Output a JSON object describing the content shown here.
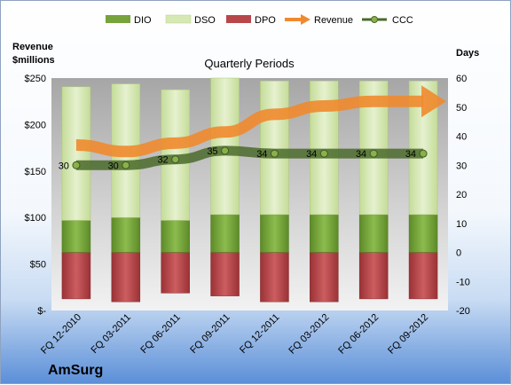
{
  "chart_data": {
    "type": "bar",
    "title": "Quarterly Periods",
    "company": "AmSurg",
    "left_axis": {
      "label_line1": "Revenue",
      "label_line2": "$millions",
      "min": 0,
      "max": 250,
      "step": 50,
      "tick_labels": [
        "$-",
        "$50",
        "$100",
        "$150",
        "$200",
        "$250"
      ]
    },
    "right_axis": {
      "label": "Days",
      "min": -20,
      "max": 60,
      "step": 10
    },
    "categories": [
      "FQ 12-2010",
      "FQ 03-2011",
      "FQ 06-2011",
      "FQ 09-2011",
      "FQ 12-2011",
      "FQ 03-2012",
      "FQ 06-2012",
      "FQ 09-2012"
    ],
    "series": [
      {
        "name": "DIO",
        "axis": "right",
        "type": "stacked-bar",
        "color": "#77a33c",
        "values": [
          11,
          12,
          11,
          13,
          13,
          13,
          13,
          13
        ]
      },
      {
        "name": "DSO",
        "axis": "right",
        "type": "stacked-bar",
        "color": "#d6e8b4",
        "values": [
          46,
          46,
          45,
          47,
          46,
          46,
          46,
          46
        ]
      },
      {
        "name": "DPO",
        "axis": "right",
        "type": "negative-bar",
        "color": "#b8474a",
        "values": [
          -16,
          -17,
          -14,
          -15,
          -17,
          -17,
          -16,
          -16
        ]
      },
      {
        "name": "Revenue",
        "axis": "left",
        "type": "line-arrow",
        "color": "#f08a2e",
        "values": [
          178,
          171,
          180,
          192,
          211,
          220,
          225,
          225
        ]
      },
      {
        "name": "CCC",
        "axis": "right",
        "type": "line-markers",
        "color": "#4a6a2a",
        "values": [
          30,
          30,
          32,
          35,
          34,
          34,
          34,
          34
        ],
        "labels": [
          "30",
          "30",
          "32",
          "35",
          "34",
          "34",
          "34",
          "34"
        ]
      }
    ],
    "legend": {
      "position": "top",
      "items": [
        "DIO",
        "DSO",
        "DPO",
        "Revenue",
        "CCC"
      ]
    },
    "grid": false
  }
}
